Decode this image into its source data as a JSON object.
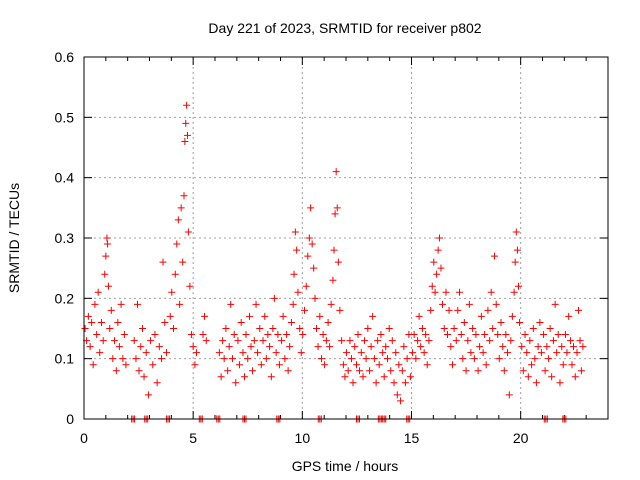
{
  "chart_data": {
    "type": "scatter",
    "title": "Day 221 of 2023, SRMTID for receiver p802",
    "xlabel": "GPS time / hours",
    "ylabel": "SRMTID / TECUs",
    "xlim": [
      0,
      24
    ],
    "ylim": [
      0,
      0.6
    ],
    "xticks": [
      0,
      5,
      10,
      15,
      20
    ],
    "xtick_labels": [
      "0",
      "5",
      "10",
      "15",
      "20"
    ],
    "yticks": [
      0,
      0.1,
      0.2,
      0.3,
      0.4,
      0.5,
      0.6
    ],
    "ytick_labels": [
      "0",
      "0.1",
      "0.2",
      "0.3",
      "0.4",
      "0.5",
      "0.6"
    ],
    "grid": true,
    "marker": "plus",
    "series": [
      {
        "name": "SRMTID",
        "color": "#ff0000",
        "points": [
          [
            0.05,
            0.15
          ],
          [
            0.12,
            0.13
          ],
          [
            0.2,
            0.17
          ],
          [
            0.28,
            0.12
          ],
          [
            0.35,
            0.16
          ],
          [
            0.42,
            0.09
          ],
          [
            0.5,
            0.19
          ],
          [
            0.58,
            0.14
          ],
          [
            0.65,
            0.21
          ],
          [
            0.72,
            0.11
          ],
          [
            0.8,
            0.16
          ],
          [
            0.88,
            0.13
          ],
          [
            0.95,
            0.24
          ],
          [
            1.0,
            0.27
          ],
          [
            1.05,
            0.3
          ],
          [
            1.08,
            0.29
          ],
          [
            1.12,
            0.22
          ],
          [
            1.18,
            0.15
          ],
          [
            1.25,
            0.18
          ],
          [
            1.32,
            0.1
          ],
          [
            1.4,
            0.13
          ],
          [
            1.48,
            0.08
          ],
          [
            1.55,
            0.16
          ],
          [
            1.62,
            0.12
          ],
          [
            1.7,
            0.19
          ],
          [
            1.78,
            0.1
          ],
          [
            1.85,
            0.14
          ],
          [
            1.92,
            0.09
          ],
          [
            2.3,
            0.13
          ],
          [
            2.38,
            0.1
          ],
          [
            2.45,
            0.19
          ],
          [
            2.52,
            0.08
          ],
          [
            2.6,
            0.12
          ],
          [
            2.68,
            0.15
          ],
          [
            2.75,
            0.07
          ],
          [
            2.85,
            0.11
          ],
          [
            2.95,
            0.04
          ],
          [
            3.05,
            0.13
          ],
          [
            3.15,
            0.09
          ],
          [
            3.25,
            0.14
          ],
          [
            3.35,
            0.06
          ],
          [
            3.45,
            0.12
          ],
          [
            3.55,
            0.1
          ],
          [
            3.62,
            0.26
          ],
          [
            3.7,
            0.16
          ],
          [
            3.78,
            0.11
          ],
          [
            3.95,
            0.17
          ],
          [
            4.02,
            0.21
          ],
          [
            4.1,
            0.15
          ],
          [
            4.18,
            0.24
          ],
          [
            4.25,
            0.29
          ],
          [
            4.32,
            0.33
          ],
          [
            4.38,
            0.19
          ],
          [
            4.45,
            0.35
          ],
          [
            4.52,
            0.26
          ],
          [
            4.58,
            0.37
          ],
          [
            4.62,
            0.46
          ],
          [
            4.66,
            0.49
          ],
          [
            4.7,
            0.52
          ],
          [
            4.74,
            0.47
          ],
          [
            4.78,
            0.31
          ],
          [
            4.85,
            0.22
          ],
          [
            4.92,
            0.14
          ],
          [
            5.0,
            0.12
          ],
          [
            5.08,
            0.09
          ],
          [
            5.15,
            0.11
          ],
          [
            5.45,
            0.14
          ],
          [
            5.52,
            0.17
          ],
          [
            5.6,
            0.13
          ],
          [
            6.2,
            0.11
          ],
          [
            6.28,
            0.07
          ],
          [
            6.35,
            0.13
          ],
          [
            6.42,
            0.1
          ],
          [
            6.5,
            0.15
          ],
          [
            6.58,
            0.08
          ],
          [
            6.65,
            0.12
          ],
          [
            6.72,
            0.19
          ],
          [
            6.8,
            0.1
          ],
          [
            6.88,
            0.14
          ],
          [
            6.95,
            0.06
          ],
          [
            7.05,
            0.13
          ],
          [
            7.12,
            0.09
          ],
          [
            7.2,
            0.16
          ],
          [
            7.28,
            0.11
          ],
          [
            7.35,
            0.07
          ],
          [
            7.42,
            0.14
          ],
          [
            7.5,
            0.1
          ],
          [
            7.58,
            0.17
          ],
          [
            7.65,
            0.12
          ],
          [
            7.72,
            0.08
          ],
          [
            7.8,
            0.13
          ],
          [
            7.88,
            0.19
          ],
          [
            7.95,
            0.11
          ],
          [
            8.05,
            0.15
          ],
          [
            8.12,
            0.09
          ],
          [
            8.2,
            0.13
          ],
          [
            8.28,
            0.17
          ],
          [
            8.35,
            0.1
          ],
          [
            8.42,
            0.14
          ],
          [
            8.5,
            0.12
          ],
          [
            8.58,
            0.07
          ],
          [
            8.65,
            0.15
          ],
          [
            8.72,
            0.2
          ],
          [
            8.8,
            0.11
          ],
          [
            8.88,
            0.14
          ],
          [
            8.95,
            0.09
          ],
          [
            9.05,
            0.13
          ],
          [
            9.12,
            0.17
          ],
          [
            9.2,
            0.1
          ],
          [
            9.28,
            0.14
          ],
          [
            9.35,
            0.08
          ],
          [
            9.42,
            0.12
          ],
          [
            9.5,
            0.16
          ],
          [
            9.58,
            0.19
          ],
          [
            9.62,
            0.24
          ],
          [
            9.68,
            0.31
          ],
          [
            9.74,
            0.28
          ],
          [
            9.8,
            0.21
          ],
          [
            9.88,
            0.15
          ],
          [
            9.95,
            0.11
          ],
          [
            10.02,
            0.14
          ],
          [
            10.1,
            0.18
          ],
          [
            10.18,
            0.22
          ],
          [
            10.25,
            0.27
          ],
          [
            10.32,
            0.3
          ],
          [
            10.38,
            0.35
          ],
          [
            10.45,
            0.29
          ],
          [
            10.52,
            0.25
          ],
          [
            10.58,
            0.2
          ],
          [
            10.65,
            0.15
          ],
          [
            10.72,
            0.12
          ],
          [
            10.8,
            0.17
          ],
          [
            10.88,
            0.1
          ],
          [
            10.95,
            0.14
          ],
          [
            11.02,
            0.09
          ],
          [
            11.1,
            0.13
          ],
          [
            11.18,
            0.16
          ],
          [
            11.25,
            0.12
          ],
          [
            11.32,
            0.19
          ],
          [
            11.4,
            0.23
          ],
          [
            11.45,
            0.28
          ],
          [
            11.5,
            0.34
          ],
          [
            11.55,
            0.41
          ],
          [
            11.6,
            0.35
          ],
          [
            11.65,
            0.26
          ],
          [
            11.72,
            0.18
          ],
          [
            11.8,
            0.13
          ],
          [
            11.88,
            0.09
          ],
          [
            11.95,
            0.07
          ],
          [
            12.02,
            0.11
          ],
          [
            12.1,
            0.08
          ],
          [
            12.18,
            0.13
          ],
          [
            12.25,
            0.1
          ],
          [
            12.32,
            0.06
          ],
          [
            12.4,
            0.12
          ],
          [
            12.48,
            0.09
          ],
          [
            12.55,
            0.14
          ],
          [
            12.62,
            0.08
          ],
          [
            12.7,
            0.11
          ],
          [
            12.78,
            0.07
          ],
          [
            12.85,
            0.13
          ],
          [
            12.92,
            0.1
          ],
          [
            13.0,
            0.15
          ],
          [
            13.08,
            0.08
          ],
          [
            13.15,
            0.12
          ],
          [
            13.22,
            0.17
          ],
          [
            13.3,
            0.1
          ],
          [
            13.38,
            0.06
          ],
          [
            13.45,
            0.13
          ],
          [
            13.52,
            0.09
          ],
          [
            13.6,
            0.14
          ],
          [
            13.68,
            0.11
          ],
          [
            13.75,
            0.07
          ],
          [
            13.82,
            0.12
          ],
          [
            13.9,
            0.1
          ],
          [
            13.98,
            0.15
          ],
          [
            14.05,
            0.08
          ],
          [
            14.12,
            0.13
          ],
          [
            14.2,
            0.06
          ],
          [
            14.28,
            0.11
          ],
          [
            14.35,
            0.04
          ],
          [
            14.42,
            0.09
          ],
          [
            14.5,
            0.03
          ],
          [
            14.58,
            0.08
          ],
          [
            14.65,
            0.12
          ],
          [
            14.72,
            0.06
          ],
          [
            14.8,
            0.1
          ],
          [
            14.88,
            0.14
          ],
          [
            14.95,
            0.07
          ],
          [
            15.05,
            0.11
          ],
          [
            15.12,
            0.14
          ],
          [
            15.2,
            0.1
          ],
          [
            15.28,
            0.13
          ],
          [
            15.35,
            0.17
          ],
          [
            15.42,
            0.12
          ],
          [
            15.5,
            0.15
          ],
          [
            15.58,
            0.11
          ],
          [
            15.65,
            0.14
          ],
          [
            15.72,
            0.09
          ],
          [
            15.8,
            0.13
          ],
          [
            15.88,
            0.18
          ],
          [
            15.95,
            0.22
          ],
          [
            16.02,
            0.26
          ],
          [
            16.08,
            0.21
          ],
          [
            16.15,
            0.24
          ],
          [
            16.22,
            0.28
          ],
          [
            16.28,
            0.3
          ],
          [
            16.35,
            0.25
          ],
          [
            16.42,
            0.19
          ],
          [
            16.5,
            0.15
          ],
          [
            16.58,
            0.21
          ],
          [
            16.65,
            0.14
          ],
          [
            16.72,
            0.18
          ],
          [
            16.8,
            0.12
          ],
          [
            16.88,
            0.09
          ],
          [
            16.95,
            0.15
          ],
          [
            17.05,
            0.13
          ],
          [
            17.12,
            0.18
          ],
          [
            17.2,
            0.21
          ],
          [
            17.28,
            0.14
          ],
          [
            17.35,
            0.1
          ],
          [
            17.42,
            0.16
          ],
          [
            17.5,
            0.08
          ],
          [
            17.58,
            0.13
          ],
          [
            17.65,
            0.19
          ],
          [
            17.72,
            0.11
          ],
          [
            17.8,
            0.15
          ],
          [
            17.88,
            0.1
          ],
          [
            17.95,
            0.14
          ],
          [
            18.05,
            0.08
          ],
          [
            18.12,
            0.12
          ],
          [
            18.2,
            0.17
          ],
          [
            18.28,
            0.11
          ],
          [
            18.35,
            0.14
          ],
          [
            18.42,
            0.09
          ],
          [
            18.5,
            0.18
          ],
          [
            18.58,
            0.13
          ],
          [
            18.65,
            0.21
          ],
          [
            18.72,
            0.15
          ],
          [
            18.8,
            0.27
          ],
          [
            18.88,
            0.19
          ],
          [
            18.95,
            0.14
          ],
          [
            19.02,
            0.1
          ],
          [
            19.1,
            0.16
          ],
          [
            19.18,
            0.12
          ],
          [
            19.25,
            0.08
          ],
          [
            19.32,
            0.14
          ],
          [
            19.4,
            0.11
          ],
          [
            19.48,
            0.04
          ],
          [
            19.55,
            0.13
          ],
          [
            19.62,
            0.17
          ],
          [
            19.7,
            0.21
          ],
          [
            19.75,
            0.26
          ],
          [
            19.8,
            0.31
          ],
          [
            19.85,
            0.28
          ],
          [
            19.9,
            0.22
          ],
          [
            19.95,
            0.16
          ],
          [
            20.05,
            0.12
          ],
          [
            20.12,
            0.08
          ],
          [
            20.2,
            0.14
          ],
          [
            20.28,
            0.11
          ],
          [
            20.35,
            0.07
          ],
          [
            20.42,
            0.13
          ],
          [
            20.5,
            0.09
          ],
          [
            20.58,
            0.15
          ],
          [
            20.65,
            0.1
          ],
          [
            20.72,
            0.06
          ],
          [
            20.8,
            0.12
          ],
          [
            20.88,
            0.16
          ],
          [
            20.95,
            0.11
          ],
          [
            21.05,
            0.14
          ],
          [
            21.12,
            0.08
          ],
          [
            21.2,
            0.12
          ],
          [
            21.28,
            0.1
          ],
          [
            21.35,
            0.15
          ],
          [
            21.42,
            0.07
          ],
          [
            21.5,
            0.13
          ],
          [
            21.58,
            0.19
          ],
          [
            21.65,
            0.11
          ],
          [
            21.72,
            0.14
          ],
          [
            21.8,
            0.06
          ],
          [
            21.88,
            0.12
          ],
          [
            21.95,
            0.09
          ],
          [
            22.05,
            0.14
          ],
          [
            22.12,
            0.11
          ],
          [
            22.2,
            0.17
          ],
          [
            22.28,
            0.13
          ],
          [
            22.35,
            0.09
          ],
          [
            22.42,
            0.12
          ],
          [
            22.5,
            0.07
          ],
          [
            22.58,
            0.11
          ],
          [
            22.65,
            0.18
          ],
          [
            22.72,
            0.13
          ],
          [
            22.78,
            0.08
          ],
          [
            22.85,
            0.12
          ]
        ]
      }
    ],
    "zero_markers_x": [
      2.25,
      2.85,
      3.85,
      5.35,
      6.15,
      7.35,
      8.9,
      10.8,
      12.55,
      13.55,
      13.75,
      14.85,
      21.15,
      22.0
    ]
  }
}
